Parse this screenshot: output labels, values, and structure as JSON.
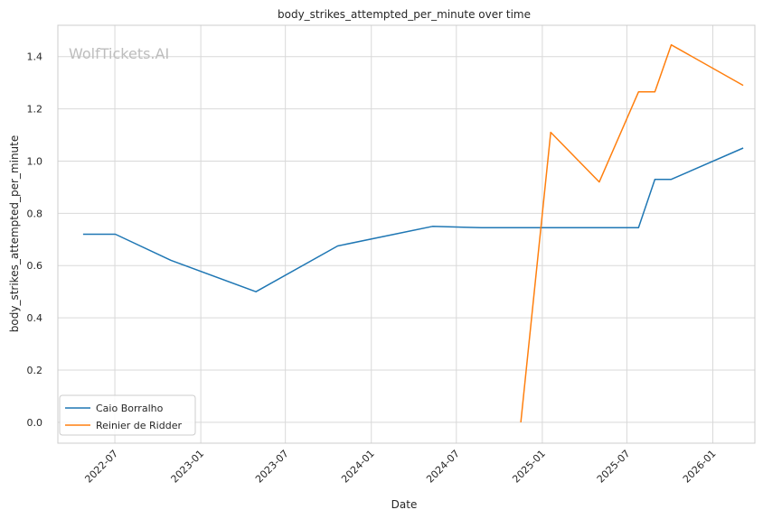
{
  "chart_data": {
    "type": "line",
    "title": "body_strikes_attempted_per_minute over time",
    "xlabel": "Date",
    "ylabel": "body_strikes_attempted_per_minute",
    "watermark": "WolfTickets.AI",
    "xlim": [
      "2022-03-01",
      "2026-04-01"
    ],
    "ylim": [
      -0.08,
      1.52
    ],
    "x_ticks": [
      "2022-07",
      "2023-01",
      "2023-07",
      "2024-01",
      "2024-07",
      "2025-01",
      "2025-07",
      "2026-01"
    ],
    "y_ticks": [
      "0.0",
      "0.2",
      "0.4",
      "0.6",
      "0.8",
      "1.0",
      "1.2",
      "1.4"
    ],
    "grid": true,
    "legend_position": "lower-left",
    "series": [
      {
        "name": "Caio Borralho",
        "color": "#1f77b4",
        "points": [
          {
            "x": "2022-04-24",
            "y": 0.72
          },
          {
            "x": "2022-07-02",
            "y": 0.72
          },
          {
            "x": "2022-10-29",
            "y": 0.62
          },
          {
            "x": "2023-04-29",
            "y": 0.5
          },
          {
            "x": "2023-10-21",
            "y": 0.675
          },
          {
            "x": "2024-05-11",
            "y": 0.75
          },
          {
            "x": "2024-08-24",
            "y": 0.745
          },
          {
            "x": "2025-07-26",
            "y": 0.745
          },
          {
            "x": "2025-08-30",
            "y": 0.93
          },
          {
            "x": "2025-10-04",
            "y": 0.93
          },
          {
            "x": "2026-03-07",
            "y": 1.05
          }
        ]
      },
      {
        "name": "Reinier de Ridder",
        "color": "#ff7f0e",
        "points": [
          {
            "x": "2024-11-16",
            "y": 0.0
          },
          {
            "x": "2025-01-19",
            "y": 1.11
          },
          {
            "x": "2025-05-03",
            "y": 0.92
          },
          {
            "x": "2025-07-26",
            "y": 1.265
          },
          {
            "x": "2025-08-30",
            "y": 1.265
          },
          {
            "x": "2025-10-04",
            "y": 1.445
          },
          {
            "x": "2026-03-07",
            "y": 1.29
          }
        ]
      }
    ]
  }
}
